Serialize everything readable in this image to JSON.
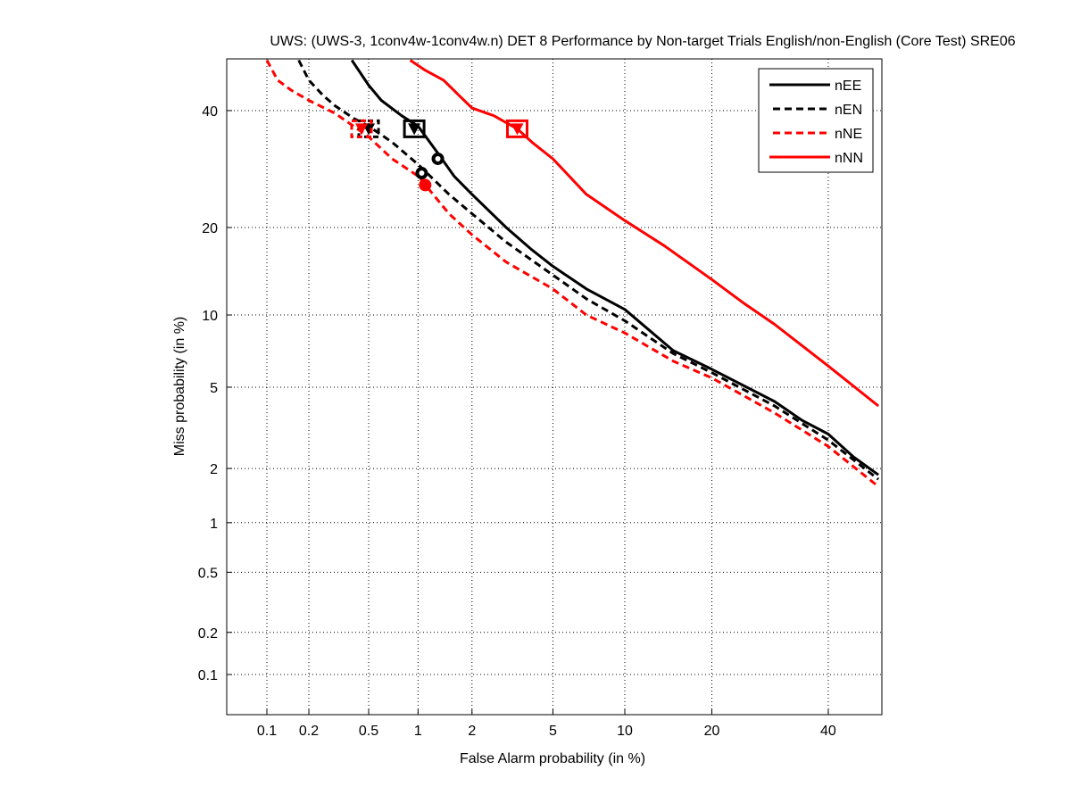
{
  "chart_data": {
    "type": "line",
    "scale": "probit (normal deviate) on both axes",
    "title": "UWS: (UWS-3, 1conv4w-1conv4w.n) DET 8 Performance by Non-target Trials English/non-English (Core Test) SRE06",
    "xlabel": "False Alarm probability (in %)",
    "ylabel": "Miss probability (in %)",
    "xlim": [
      0.05,
      50
    ],
    "ylim": [
      0.05,
      50
    ],
    "grid": true,
    "legend_position": "top-right",
    "x_ticks": [
      0.1,
      0.2,
      0.5,
      1,
      2,
      5,
      10,
      20,
      40
    ],
    "x_tick_labels": [
      "0.1",
      "0.2",
      "0.5",
      "1",
      "2",
      "5",
      "10",
      "20",
      "40"
    ],
    "y_ticks": [
      0.1,
      0.2,
      0.5,
      1,
      2,
      5,
      10,
      20,
      40
    ],
    "y_tick_labels": [
      "0.1",
      "0.2",
      "0.5",
      "1",
      "2",
      "5",
      "10",
      "20",
      "40"
    ],
    "series": [
      {
        "name": "nEE",
        "color": "#000000",
        "style": "solid",
        "points": [
          [
            0.39,
            50
          ],
          [
            0.5,
            45
          ],
          [
            0.6,
            42
          ],
          [
            0.8,
            39
          ],
          [
            1.0,
            37
          ],
          [
            1.3,
            32
          ],
          [
            1.6,
            28
          ],
          [
            2,
            25
          ],
          [
            3,
            20
          ],
          [
            4,
            17
          ],
          [
            5,
            15
          ],
          [
            7,
            12.5
          ],
          [
            10,
            10.5
          ],
          [
            15,
            7.2
          ],
          [
            20,
            6
          ],
          [
            30,
            4.3
          ],
          [
            35,
            3.5
          ],
          [
            40,
            3
          ],
          [
            45,
            2.3
          ],
          [
            50,
            1.85
          ]
        ],
        "min_dcf": {
          "fa": 0.95,
          "miss": 36.5
        },
        "act_dcf": {
          "fa": 1.3,
          "miss": 31
        }
      },
      {
        "name": "nEN",
        "color": "#000000",
        "style": "dashed",
        "points": [
          [
            0.17,
            50
          ],
          [
            0.2,
            46
          ],
          [
            0.25,
            43
          ],
          [
            0.3,
            41
          ],
          [
            0.4,
            38.5
          ],
          [
            0.5,
            37
          ],
          [
            0.7,
            34
          ],
          [
            1.0,
            30
          ],
          [
            1.5,
            25
          ],
          [
            2,
            22
          ],
          [
            3,
            18
          ],
          [
            5,
            14
          ],
          [
            7,
            11.5
          ],
          [
            10,
            9.5
          ],
          [
            15,
            7
          ],
          [
            20,
            5.8
          ],
          [
            30,
            4.1
          ],
          [
            40,
            2.8
          ],
          [
            50,
            1.75
          ]
        ],
        "min_dcf": {
          "fa": 0.5,
          "miss": 36.5
        },
        "act_dcf": {
          "fa": 1.05,
          "miss": 28.5
        }
      },
      {
        "name": "nNE",
        "color": "#ff0000",
        "style": "dashed",
        "points": [
          [
            0.1,
            50
          ],
          [
            0.12,
            46
          ],
          [
            0.15,
            44
          ],
          [
            0.2,
            42
          ],
          [
            0.3,
            39.5
          ],
          [
            0.4,
            37
          ],
          [
            0.5,
            35
          ],
          [
            0.7,
            31
          ],
          [
            1.0,
            28
          ],
          [
            1.5,
            22
          ],
          [
            2,
            19
          ],
          [
            3,
            15.5
          ],
          [
            5,
            12.5
          ],
          [
            7,
            10
          ],
          [
            10,
            8.5
          ],
          [
            15,
            6.5
          ],
          [
            20,
            5.5
          ],
          [
            30,
            3.8
          ],
          [
            40,
            2.6
          ],
          [
            50,
            1.6
          ]
        ],
        "min_dcf": {
          "fa": 0.45,
          "miss": 36.5
        },
        "act_dcf": {
          "fa": 1.1,
          "miss": 26.5
        }
      },
      {
        "name": "nNN",
        "color": "#ff0000",
        "style": "solid",
        "points": [
          [
            0.9,
            50
          ],
          [
            1.1,
            48
          ],
          [
            1.4,
            46
          ],
          [
            1.7,
            43
          ],
          [
            2,
            40.5
          ],
          [
            2.6,
            39
          ],
          [
            3.4,
            36.5
          ],
          [
            4,
            34
          ],
          [
            5,
            31
          ],
          [
            7,
            25
          ],
          [
            10,
            21
          ],
          [
            14,
            17.5
          ],
          [
            20,
            13.5
          ],
          [
            25,
            11
          ],
          [
            30,
            9.2
          ],
          [
            40,
            6.2
          ],
          [
            50,
            4.1
          ]
        ],
        "min_dcf": {
          "fa": 3.4,
          "miss": 36.5
        },
        "act_dcf": null
      }
    ]
  }
}
